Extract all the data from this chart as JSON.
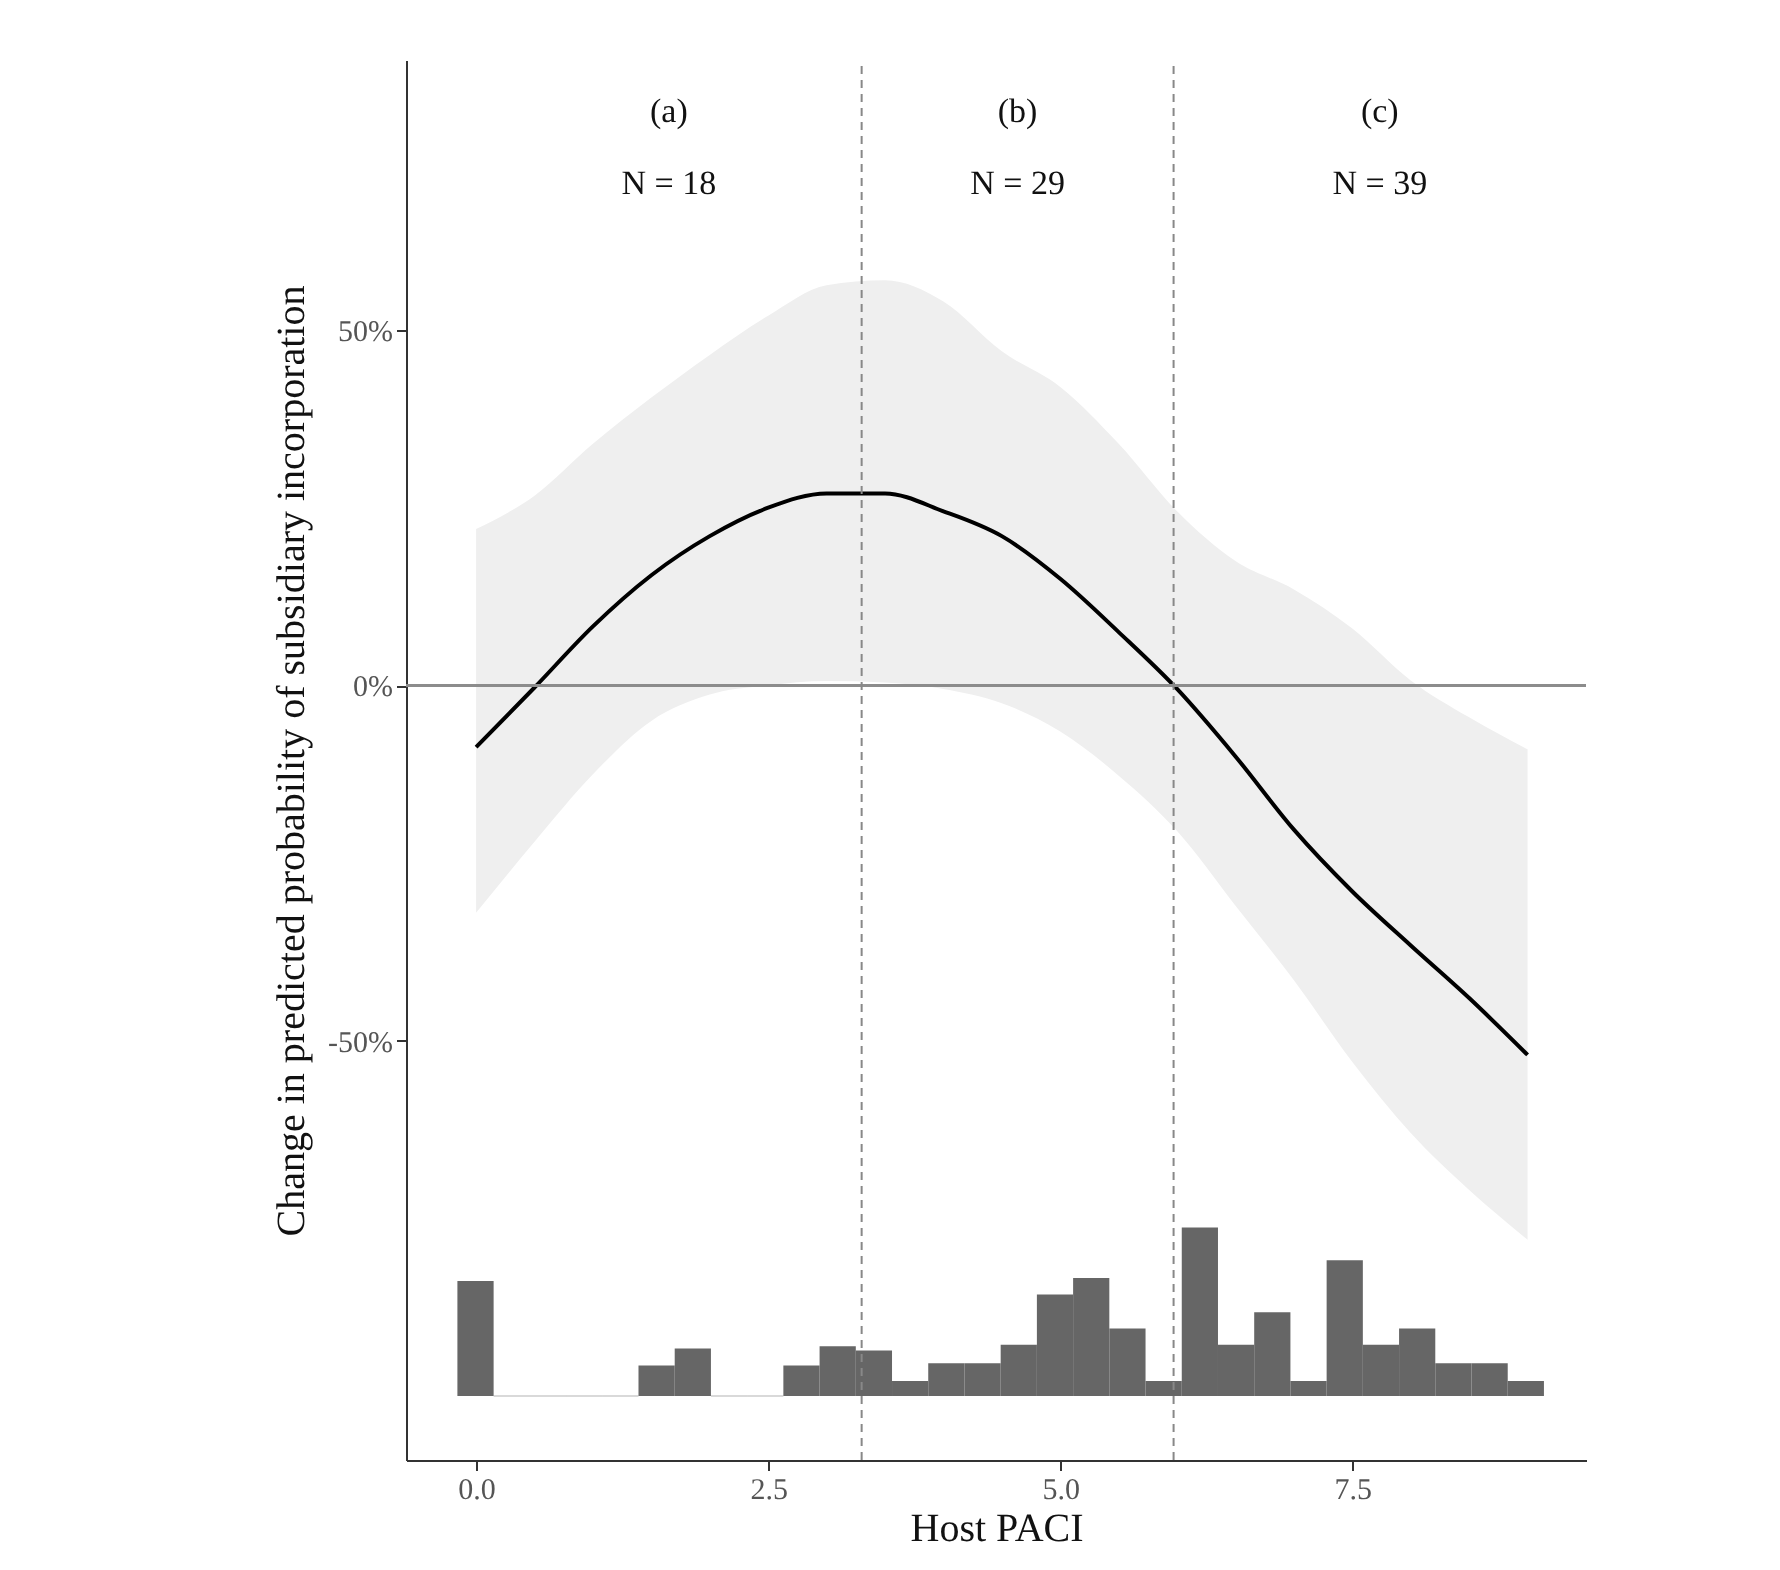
{
  "chart_data": {
    "type": "line",
    "xlabel": "Host PACI",
    "ylabel": "Change in predicted probability of subsidiary incorporation",
    "xlim": [
      -0.6,
      9.5
    ],
    "ylim": [
      -109,
      88
    ],
    "xticks": [
      {
        "value": 0,
        "label": "0.0"
      },
      {
        "value": 2.5,
        "label": "2.5"
      },
      {
        "value": 5,
        "label": "5.0"
      },
      {
        "value": 7.5,
        "label": "7.5"
      }
    ],
    "yticks": [
      {
        "value": -50,
        "label": "-50%"
      },
      {
        "value": 0,
        "label": "0%"
      },
      {
        "value": 50,
        "label": "50%"
      }
    ],
    "grid": false,
    "series": [
      {
        "color": "#000000",
        "x": [
          0,
          0.5,
          1,
          1.5,
          2,
          2.5,
          3,
          3.5,
          4,
          4.5,
          5,
          5.5,
          6,
          6.5,
          7,
          7.5,
          8,
          8.5,
          9
        ],
        "values": [
          -8.7,
          -0.3,
          8.3,
          15.5,
          21,
          25,
          27,
          27,
          24.5,
          21,
          15,
          7.5,
          -0.5,
          -10,
          -20.3,
          -29,
          -36.6,
          -44,
          -52
        ],
        "lower": [
          -32,
          -22,
          -12.5,
          -5,
          -1.3,
          0,
          0.6,
          0.4,
          -0.5,
          -2.5,
          -6.5,
          -12.7,
          -20.5,
          -31,
          -41.5,
          -53,
          -63,
          -71,
          -78
        ],
        "upper": [
          22,
          26.7,
          34,
          40.5,
          46.5,
          52,
          56.3,
          57,
          54,
          47,
          42,
          34,
          24.5,
          17.5,
          13.5,
          8,
          0.7,
          -4.5,
          -9
        ]
      },
      {
        "type": "histogram",
        "color": "#666666",
        "bins": [
          -0.16,
          0.15,
          0.46,
          0.77,
          1.08,
          1.39,
          1.7,
          2.01,
          2.32,
          2.63,
          2.94,
          3.25,
          3.56,
          3.87,
          4.18,
          4.49,
          4.8,
          5.11,
          5.42,
          5.73,
          6.04,
          6.35,
          6.66,
          6.97,
          7.28,
          7.59,
          7.9,
          8.21,
          8.52,
          8.83,
          9.14
        ],
        "values": [
          16.2,
          0,
          0,
          0,
          0,
          4.3,
          6.7,
          0,
          0,
          4.3,
          7,
          6.4,
          2.1,
          4.6,
          4.6,
          7.2,
          14.3,
          16.6,
          9.5,
          2.1,
          23.7,
          7.2,
          11.8,
          2.1,
          19.1,
          7.2,
          9.5,
          4.6,
          4.6,
          2.1
        ],
        "base": [
          -100,
          -100,
          -100,
          -100,
          -100,
          -100,
          -100,
          -100,
          -100,
          -100,
          -100,
          -100,
          -100,
          -100,
          -100,
          -100,
          -100,
          -100,
          -100,
          -100,
          -100,
          -100,
          -100,
          -100,
          -100,
          -100,
          -100,
          -100,
          -100,
          -100
        ]
      }
    ],
    "ref_lines": [
      {
        "axis": "y",
        "value": 0,
        "color": "#8c8c8c",
        "line_style": "solid"
      },
      {
        "axis": "x",
        "value": 3.3,
        "color": "#888888",
        "line_style": "dashed"
      },
      {
        "axis": "x",
        "value": 5.97,
        "color": "#888888",
        "line_style": "dashed"
      }
    ],
    "annotations": [
      "(a)",
      "N = 18",
      "(b)",
      "N = 29",
      "(c)",
      "N = 39"
    ]
  }
}
